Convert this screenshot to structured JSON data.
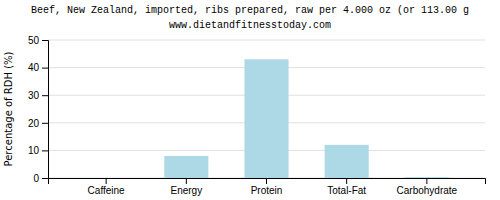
{
  "chart_data": {
    "type": "bar",
    "title": "Beef, New Zealand, imported, ribs prepared, raw per 4.000 oz (or 113.00 g",
    "subtitle": "www.dietandfitnesstoday.com",
    "categories": [
      "Caffeine",
      "Energy",
      "Protein",
      "Total-Fat",
      "Carbohydrate"
    ],
    "values": [
      0,
      8.0,
      43.0,
      12.0,
      0.3
    ],
    "color": "#add8e6",
    "ylabel": "Percentage of RDH (%)",
    "ylim": [
      0,
      50
    ],
    "yticks": [
      0,
      10,
      20,
      30,
      40,
      50
    ],
    "grid": true
  }
}
